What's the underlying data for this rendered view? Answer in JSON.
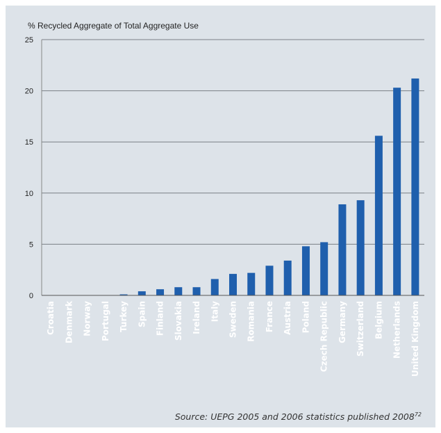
{
  "chart_data": {
    "type": "bar",
    "title": "",
    "ylabel": "% Recycled Aggregate of Total Aggregate Use",
    "xlabel": "",
    "ylim": [
      0,
      25
    ],
    "yticks": [
      0,
      5,
      10,
      15,
      20,
      25
    ],
    "grid": true,
    "bar_color": "#1f5fad",
    "categories": [
      "Croatia",
      "Denmark",
      "Norway",
      "Portugal",
      "Turkey",
      "Spain",
      "Finland",
      "Slovakia",
      "Ireland",
      "Italy",
      "Sweden",
      "Romania",
      "France",
      "Austria",
      "Poland",
      "Czech Republic",
      "Germany",
      "Switzerland",
      "Belgium",
      "Netherlands",
      "United Kingdom"
    ],
    "values": [
      0,
      0,
      0,
      0,
      0.1,
      0.4,
      0.6,
      0.8,
      0.8,
      1.6,
      2.1,
      2.2,
      2.9,
      3.4,
      4.8,
      5.2,
      8.9,
      9.3,
      15.6,
      20.3,
      21.2
    ]
  },
  "source": {
    "text": "Source: UEPG 2005 and 2006 statistics published 2008",
    "ref": "72"
  }
}
